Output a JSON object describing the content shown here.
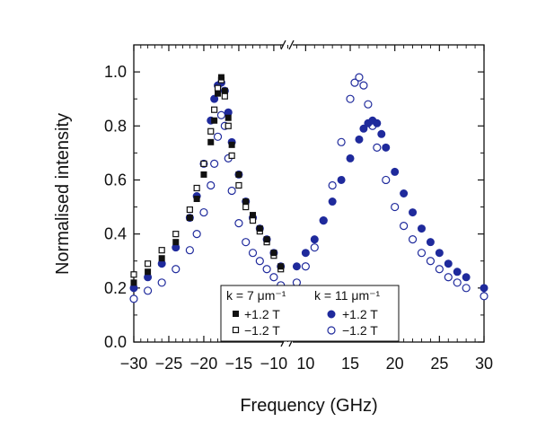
{
  "chart_data": {
    "type": "scatter",
    "xlabel": "Frequency (GHz)",
    "ylabel": "Normalised intensity",
    "ylim": [
      0,
      1.1
    ],
    "x_panels": [
      {
        "xlim": [
          -30,
          -8
        ],
        "ticks": [
          -30,
          -25,
          -20,
          -15,
          -10
        ],
        "tick_labels": [
          "−30",
          "−25",
          "−20",
          "−15",
          "−10"
        ]
      },
      {
        "xlim": [
          8,
          30
        ],
        "ticks": [
          10,
          15,
          20,
          25,
          30
        ],
        "tick_labels": [
          "10",
          "15",
          "20",
          "25",
          "30"
        ]
      }
    ],
    "y_ticks": [
      0.0,
      0.2,
      0.4,
      0.6,
      0.8,
      1.0
    ],
    "y_tick_labels": [
      "0.0",
      "0.2",
      "0.4",
      "0.6",
      "0.8",
      "1.0"
    ],
    "axis_break": true,
    "grid": false,
    "legend": {
      "placement": "bottom-center",
      "groups": [
        {
          "title": "k = 7 μm⁻¹",
          "entries": [
            "+1.2 T",
            "−1.2 T"
          ]
        },
        {
          "title": "k = 11 μm⁻¹",
          "entries": [
            "+1.2 T",
            "−1.2 T"
          ]
        }
      ]
    },
    "series": [
      {
        "name": "+1.2 T",
        "group": "k = 7 μm⁻¹",
        "marker": "square-filled",
        "color": "#111111",
        "x": [
          -30,
          -28,
          -26,
          -24,
          -22,
          -21,
          -20,
          -19,
          -18.5,
          -18,
          -17.5,
          -17,
          -16.5,
          -16,
          -15,
          -14,
          -13,
          -12,
          -11,
          -10,
          -9
        ],
        "y": [
          0.22,
          0.26,
          0.31,
          0.37,
          0.46,
          0.53,
          0.62,
          0.74,
          0.82,
          0.92,
          0.98,
          0.93,
          0.83,
          0.73,
          0.62,
          0.52,
          0.47,
          0.42,
          0.38,
          0.33,
          0.28
        ]
      },
      {
        "name": "−1.2 T",
        "group": "k = 7 μm⁻¹",
        "marker": "square-open",
        "color": "#111111",
        "x": [
          -30,
          -28,
          -26,
          -24,
          -22,
          -21,
          -20,
          -19,
          -18.5,
          -18,
          -17.5,
          -17,
          -16.5,
          -16,
          -15,
          -14,
          -13,
          -12,
          -11,
          -10,
          -9
        ],
        "y": [
          0.25,
          0.29,
          0.34,
          0.4,
          0.49,
          0.57,
          0.66,
          0.78,
          0.86,
          0.94,
          0.97,
          0.91,
          0.8,
          0.69,
          0.58,
          0.5,
          0.45,
          0.41,
          0.37,
          0.32,
          0.27
        ]
      },
      {
        "name": "+1.2 T",
        "group": "k = 11 μm⁻¹",
        "marker": "circle-filled",
        "color": "#1f2a9c",
        "x": [
          -30,
          -28,
          -26,
          -24,
          -22,
          -21,
          -20,
          -19,
          -18.5,
          -18,
          -17.5,
          -17,
          -16.5,
          -16,
          -15,
          -14,
          -13,
          -12,
          -11,
          -10,
          -9,
          9,
          10,
          11,
          12,
          13,
          14,
          15,
          16,
          16.5,
          17,
          17.5,
          18,
          18.5,
          19,
          20,
          21,
          22,
          23,
          24,
          25,
          26,
          27,
          28,
          30
        ],
        "y": [
          0.2,
          0.24,
          0.29,
          0.35,
          0.46,
          0.54,
          0.66,
          0.82,
          0.9,
          0.95,
          0.96,
          0.93,
          0.85,
          0.74,
          0.62,
          0.52,
          0.46,
          0.42,
          0.38,
          0.33,
          0.28,
          0.28,
          0.33,
          0.38,
          0.45,
          0.52,
          0.6,
          0.68,
          0.75,
          0.79,
          0.81,
          0.82,
          0.81,
          0.77,
          0.72,
          0.63,
          0.55,
          0.48,
          0.42,
          0.37,
          0.33,
          0.29,
          0.26,
          0.24,
          0.2
        ]
      },
      {
        "name": "−1.2 T",
        "group": "k = 11 μm⁻¹",
        "marker": "circle-open",
        "color": "#1f2a9c",
        "x": [
          -30,
          -28,
          -26,
          -24,
          -22,
          -21,
          -20,
          -19,
          -18.5,
          -18,
          -17.5,
          -17,
          -16.5,
          -16,
          -15,
          -14,
          -13,
          -12,
          -11,
          -10,
          -9,
          9,
          10,
          11,
          12,
          13,
          14,
          15,
          15.5,
          16,
          16.5,
          17,
          17.5,
          18,
          19,
          20,
          21,
          22,
          23,
          24,
          25,
          26,
          27,
          28,
          30
        ],
        "y": [
          0.16,
          0.19,
          0.22,
          0.27,
          0.34,
          0.4,
          0.48,
          0.58,
          0.66,
          0.76,
          0.84,
          0.8,
          0.68,
          0.56,
          0.44,
          0.37,
          0.33,
          0.3,
          0.27,
          0.24,
          0.21,
          0.22,
          0.28,
          0.35,
          0.45,
          0.58,
          0.74,
          0.9,
          0.96,
          0.98,
          0.95,
          0.88,
          0.8,
          0.72,
          0.6,
          0.5,
          0.43,
          0.38,
          0.33,
          0.3,
          0.27,
          0.24,
          0.22,
          0.2,
          0.17
        ]
      }
    ]
  }
}
